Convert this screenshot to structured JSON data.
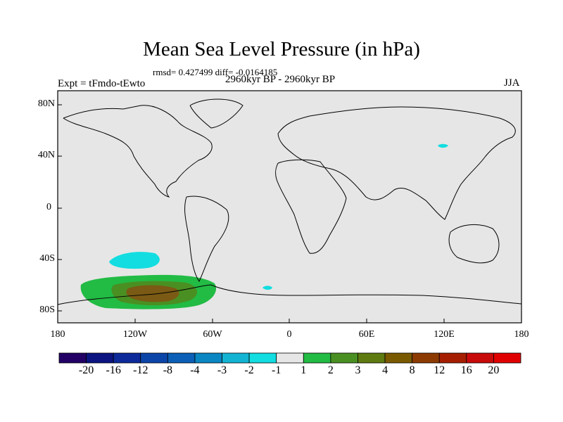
{
  "title": "Mean Sea Level Pressure (in hPa)",
  "stats": "rmsd= 0.427499 diff= -0.0164185",
  "experiment": "Expt = tFmdo-tEwto",
  "period": "2960kyr BP - 2960kyr BP",
  "season": "JJA",
  "lat_labels": [
    "80N",
    "40N",
    "0",
    "40S",
    "80S"
  ],
  "lon_labels": [
    "180",
    "120W",
    "60W",
    "0",
    "60E",
    "120E",
    "180"
  ],
  "colorbar": {
    "labels": [
      "-20",
      "-16",
      "-12",
      "-8",
      "-4",
      "-3",
      "-2",
      "-1",
      "1",
      "2",
      "3",
      "4",
      "8",
      "12",
      "16",
      "20"
    ],
    "colors": [
      "#220066",
      "#0b1480",
      "#0d2a9a",
      "#0c45a8",
      "#0b5fb6",
      "#0a86c2",
      "#13b3d3",
      "#12dde0",
      "#e6e6e6",
      "#22bb44",
      "#4a8f22",
      "#5e7a10",
      "#7a5a00",
      "#8c3a00",
      "#a51e00",
      "#c80a0a",
      "#e00000"
    ]
  },
  "colors": {
    "land_ocean_bg": "#e6e6e6",
    "positive_1_2": "#22bb44",
    "positive_2_3": "#4a8f22",
    "positive_3_4": "#7a5a14",
    "negative": "#13dde0"
  }
}
